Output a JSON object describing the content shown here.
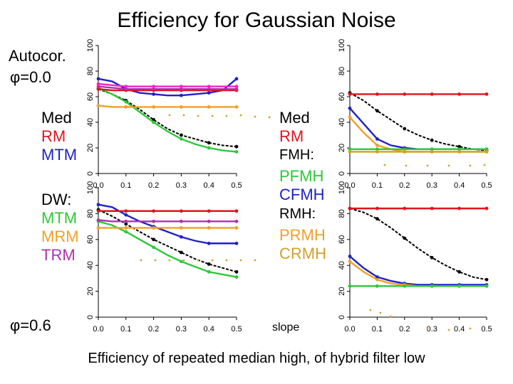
{
  "title": "Efficiency for Gaussian Noise",
  "caption": "Efficiency of repeated median high, of hybrid filter low",
  "side": {
    "autocor": "Autocor.",
    "phi0": "φ=0.0",
    "phi6": "φ=0.6",
    "med_l": "Med",
    "rm_l": "RM",
    "mtm_l": "MTM",
    "dw": "DW:",
    "dw_mtm": "MTM",
    "dw_mrm": "MRM",
    "dw_trm": "TRM",
    "med_r": "Med",
    "rm_r": "RM",
    "fmh": "FMH:",
    "pfmh": "PFMH",
    "cfmh": "CFMH",
    "rmh": "RMH:",
    "prmh": "PRMH",
    "crmh": "CRMH",
    "slope": "slope"
  },
  "colors": {
    "black": "#000000",
    "red": "#e0141e",
    "blue": "#1e22c8",
    "green": "#2ec83a",
    "orange": "#f0a028",
    "purple": "#b030b0",
    "magenta": "#ff20c8",
    "gold": "#d4a020",
    "tan": "#d2a030",
    "axis": "#000000"
  },
  "chart_data": [
    {
      "id": "top-left",
      "type": "line",
      "title": "",
      "xlabel": "",
      "ylabel": "",
      "xlim": [
        0,
        0.5
      ],
      "ylim": [
        0,
        100
      ],
      "xticks": [
        "0.0",
        "0.1",
        "0.2",
        "0.3",
        "0.4",
        "0.5"
      ],
      "yticks": [
        "0",
        "20",
        "40",
        "60",
        "80",
        "100"
      ],
      "series": [
        {
          "name": "black",
          "color": "black",
          "x": [
            0,
            0.05,
            0.1,
            0.15,
            0.2,
            0.25,
            0.3,
            0.35,
            0.4,
            0.45,
            0.5
          ],
          "values": [
            66,
            62,
            57,
            50,
            42,
            35,
            30,
            27,
            24,
            22,
            21
          ]
        },
        {
          "name": "green",
          "color": "green",
          "x": [
            0,
            0.05,
            0.1,
            0.15,
            0.2,
            0.25,
            0.3,
            0.35,
            0.4,
            0.45,
            0.5
          ],
          "values": [
            67,
            62,
            56,
            48,
            40,
            33,
            27,
            23,
            20,
            18,
            17
          ]
        },
        {
          "name": "blue",
          "color": "blue",
          "x": [
            0,
            0.05,
            0.1,
            0.15,
            0.2,
            0.25,
            0.3,
            0.35,
            0.4,
            0.45,
            0.5
          ],
          "values": [
            74,
            72,
            66,
            63,
            62,
            61,
            61,
            62,
            63,
            65,
            74
          ]
        },
        {
          "name": "red",
          "color": "red",
          "x": [
            0,
            0.05,
            0.1,
            0.15,
            0.2,
            0.25,
            0.3,
            0.35,
            0.4,
            0.45,
            0.5
          ],
          "values": [
            66,
            65,
            65,
            65,
            65,
            65,
            65,
            65,
            65,
            65,
            65
          ]
        },
        {
          "name": "purple",
          "color": "purple",
          "x": [
            0,
            0.05,
            0.1,
            0.15,
            0.2,
            0.25,
            0.3,
            0.35,
            0.4,
            0.45,
            0.5
          ],
          "values": [
            68,
            67,
            66,
            66,
            66,
            66,
            66,
            66,
            66,
            66,
            66
          ]
        },
        {
          "name": "magenta",
          "color": "magenta",
          "x": [
            0,
            0.05,
            0.1,
            0.15,
            0.2,
            0.25,
            0.3,
            0.35,
            0.4,
            0.45,
            0.5
          ],
          "values": [
            70,
            69,
            68,
            68,
            68,
            68,
            68,
            68,
            68,
            68,
            68
          ]
        },
        {
          "name": "orange",
          "color": "orange",
          "x": [
            0,
            0.05,
            0.1,
            0.15,
            0.2,
            0.25,
            0.3,
            0.35,
            0.4,
            0.45,
            0.5
          ],
          "values": [
            53,
            52,
            52,
            52,
            52,
            52,
            52,
            52,
            52,
            52,
            52
          ]
        }
      ]
    },
    {
      "id": "bottom-left",
      "type": "line",
      "title": "",
      "xlabel": "",
      "ylabel": "",
      "xlim": [
        0,
        0.5
      ],
      "ylim": [
        0,
        100
      ],
      "xticks": [
        "0.0",
        "0.1",
        "0.2",
        "0.3",
        "0.4",
        "0.5"
      ],
      "yticks": [
        "0",
        "20",
        "40",
        "60",
        "80",
        "100"
      ],
      "series": [
        {
          "name": "black",
          "color": "black",
          "x": [
            0,
            0.05,
            0.1,
            0.15,
            0.2,
            0.25,
            0.3,
            0.35,
            0.4,
            0.45,
            0.5
          ],
          "values": [
            83,
            78,
            72,
            66,
            60,
            55,
            50,
            45,
            41,
            38,
            35
          ]
        },
        {
          "name": "green",
          "color": "green",
          "x": [
            0,
            0.05,
            0.1,
            0.15,
            0.2,
            0.25,
            0.3,
            0.35,
            0.4,
            0.45,
            0.5
          ],
          "values": [
            74,
            71,
            66,
            60,
            54,
            48,
            43,
            39,
            35,
            33,
            31
          ]
        },
        {
          "name": "blue",
          "color": "blue",
          "x": [
            0,
            0.05,
            0.1,
            0.15,
            0.2,
            0.25,
            0.3,
            0.35,
            0.4,
            0.45,
            0.5
          ],
          "values": [
            87,
            85,
            79,
            74,
            70,
            66,
            62,
            59,
            57,
            57,
            57
          ]
        },
        {
          "name": "red",
          "color": "red",
          "x": [
            0,
            0.05,
            0.1,
            0.15,
            0.2,
            0.25,
            0.3,
            0.35,
            0.4,
            0.45,
            0.5
          ],
          "values": [
            82,
            82,
            82,
            82,
            82,
            82,
            82,
            82,
            82,
            82,
            82
          ]
        },
        {
          "name": "purple",
          "color": "purple",
          "x": [
            0,
            0.05,
            0.1,
            0.15,
            0.2,
            0.25,
            0.3,
            0.35,
            0.4,
            0.45,
            0.5
          ],
          "values": [
            75,
            74,
            74,
            74,
            74,
            74,
            74,
            74,
            74,
            74,
            74
          ]
        },
        {
          "name": "orange",
          "color": "orange",
          "x": [
            0,
            0.05,
            0.1,
            0.15,
            0.2,
            0.25,
            0.3,
            0.35,
            0.4,
            0.45,
            0.5
          ],
          "values": [
            69,
            69,
            69,
            69,
            69,
            69,
            69,
            69,
            69,
            69,
            69
          ]
        }
      ]
    },
    {
      "id": "top-right",
      "type": "line",
      "title": "",
      "xlabel": "",
      "ylabel": "",
      "xlim": [
        0,
        0.5
      ],
      "ylim": [
        0,
        100
      ],
      "xticks": [
        "0.0",
        "0.1",
        "0.2",
        "0.3",
        "0.4",
        "0.5"
      ],
      "yticks": [
        "0",
        "20",
        "40",
        "60",
        "80",
        "100"
      ],
      "series": [
        {
          "name": "black",
          "color": "black",
          "x": [
            0,
            0.05,
            0.1,
            0.15,
            0.2,
            0.25,
            0.3,
            0.35,
            0.4,
            0.45,
            0.5
          ],
          "values": [
            63,
            57,
            49,
            42,
            35,
            30,
            26,
            23,
            21,
            19,
            18
          ]
        },
        {
          "name": "red",
          "color": "red",
          "x": [
            0,
            0.05,
            0.1,
            0.15,
            0.2,
            0.25,
            0.3,
            0.35,
            0.4,
            0.45,
            0.5
          ],
          "values": [
            62,
            62,
            62,
            62,
            62,
            62,
            62,
            62,
            62,
            62,
            62
          ]
        },
        {
          "name": "blue",
          "color": "blue",
          "x": [
            0,
            0.05,
            0.1,
            0.15,
            0.2,
            0.25,
            0.3,
            0.35,
            0.4,
            0.45,
            0.5
          ],
          "values": [
            51,
            39,
            27,
            22,
            20,
            19,
            19,
            19,
            19,
            19,
            19
          ]
        },
        {
          "name": "orange",
          "color": "orange",
          "x": [
            0,
            0.05,
            0.1,
            0.15,
            0.2,
            0.25,
            0.3,
            0.35,
            0.4,
            0.45,
            0.5
          ],
          "values": [
            44,
            32,
            22,
            19,
            17,
            17,
            17,
            17,
            17,
            17,
            17
          ]
        },
        {
          "name": "green",
          "color": "green",
          "x": [
            0,
            0.05,
            0.1,
            0.15,
            0.2,
            0.25,
            0.3,
            0.35,
            0.4,
            0.45,
            0.5
          ],
          "values": [
            19,
            19,
            19,
            19,
            19,
            19,
            19,
            19,
            19,
            19,
            19
          ]
        },
        {
          "name": "gold",
          "color": "gold",
          "x": [
            0,
            0.05,
            0.1,
            0.15,
            0.2,
            0.25,
            0.3,
            0.35,
            0.4,
            0.45,
            0.5
          ],
          "values": [
            17,
            17,
            17,
            17,
            17,
            17,
            17,
            17,
            17,
            17,
            17
          ]
        }
      ]
    },
    {
      "id": "bottom-right",
      "type": "line",
      "title": "",
      "xlabel": "",
      "ylabel": "",
      "xlim": [
        0,
        0.5
      ],
      "ylim": [
        0,
        100
      ],
      "xticks": [
        "0.0",
        "0.1",
        "0.2",
        "0.3",
        "0.4",
        "0.5"
      ],
      "yticks": [
        "0",
        "20",
        "40",
        "60",
        "80",
        "100"
      ],
      "series": [
        {
          "name": "black",
          "color": "black",
          "x": [
            0,
            0.05,
            0.1,
            0.15,
            0.2,
            0.25,
            0.3,
            0.35,
            0.4,
            0.45,
            0.5
          ],
          "values": [
            84,
            81,
            76,
            69,
            61,
            53,
            46,
            40,
            35,
            31,
            29
          ]
        },
        {
          "name": "red",
          "color": "red",
          "x": [
            0,
            0.05,
            0.1,
            0.15,
            0.2,
            0.25,
            0.3,
            0.35,
            0.4,
            0.45,
            0.5
          ],
          "values": [
            84,
            84,
            84,
            84,
            84,
            84,
            84,
            84,
            84,
            84,
            84
          ]
        },
        {
          "name": "blue",
          "color": "blue",
          "x": [
            0,
            0.05,
            0.1,
            0.15,
            0.2,
            0.25,
            0.3,
            0.35,
            0.4,
            0.45,
            0.5
          ],
          "values": [
            47,
            38,
            31,
            28,
            26,
            25,
            25,
            25,
            25,
            25,
            25
          ]
        },
        {
          "name": "orange",
          "color": "orange",
          "x": [
            0,
            0.05,
            0.1,
            0.15,
            0.2,
            0.25,
            0.3,
            0.35,
            0.4,
            0.45,
            0.5
          ],
          "values": [
            43,
            35,
            29,
            26,
            25,
            24,
            24,
            24,
            24,
            24,
            24
          ]
        },
        {
          "name": "green",
          "color": "green",
          "x": [
            0,
            0.05,
            0.1,
            0.15,
            0.2,
            0.25,
            0.3,
            0.35,
            0.4,
            0.45,
            0.5
          ],
          "values": [
            24,
            24,
            24,
            24,
            24,
            24,
            24,
            24,
            24,
            24,
            24
          ]
        }
      ]
    }
  ]
}
